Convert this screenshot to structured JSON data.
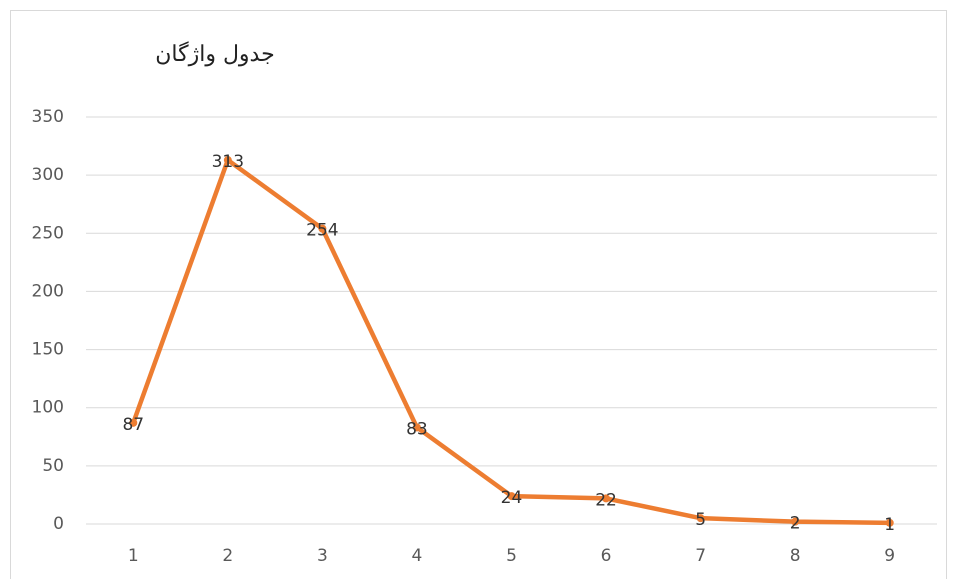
{
  "chart_data": {
    "type": "line",
    "title": "جدول واژگان",
    "categories": [
      "1",
      "2",
      "3",
      "4",
      "5",
      "6",
      "7",
      "8",
      "9"
    ],
    "values": [
      87,
      313,
      254,
      83,
      24,
      22,
      5,
      2,
      1
    ],
    "color": "#ed7d31",
    "ylim": [
      0,
      350
    ],
    "yticks": [
      0,
      50,
      100,
      150,
      200,
      250,
      300,
      350
    ],
    "grid": true
  }
}
